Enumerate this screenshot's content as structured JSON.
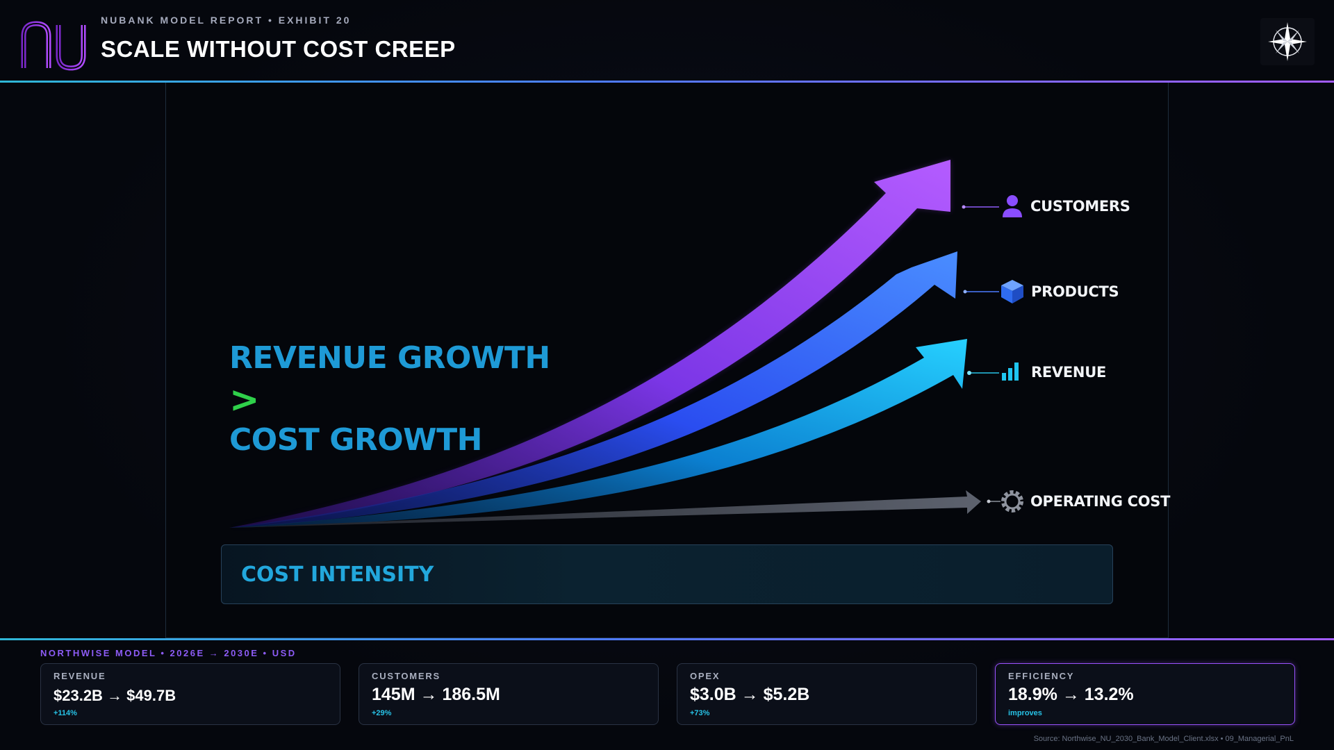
{
  "header": {
    "eyebrow": "NUBANK MODEL REPORT • EXHIBIT 20",
    "title": "SCALE WITHOUT COST CREEP",
    "logo_icon": "nu-logo-icon",
    "badge_icon": "compass-icon"
  },
  "colors": {
    "accent_purple": "#a35bff",
    "accent_blue": "#4d7bff",
    "accent_cyan": "#27c2e6",
    "accent_green": "#2fd04a"
  },
  "hero": {
    "line1": "REVENUE GROWTH",
    "comparator": ">",
    "line2": "COST GROWTH"
  },
  "series": [
    {
      "label": "CUSTOMERS",
      "icon": "user-icon",
      "color": "#a35bff"
    },
    {
      "label": "PRODUCTS",
      "icon": "cube-icon",
      "color": "#3d7dff"
    },
    {
      "label": "REVENUE",
      "icon": "bar-chart-icon",
      "color": "#1fc6f0"
    },
    {
      "label": "OPERATING COST",
      "icon": "gear-icon",
      "color": "#6d7280"
    }
  ],
  "cost_intensity": {
    "label": "COST INTENSITY"
  },
  "footer": {
    "model_tag": "NORTHWISE MODEL • 2026E → 2030E • USD",
    "kpis": [
      {
        "label": "REVENUE",
        "value": "$23.2B → $49.7B",
        "delta": "+114%"
      },
      {
        "label": "CUSTOMERS",
        "value": "145M → 186.5M",
        "delta": "+29%"
      },
      {
        "label": "OPEX",
        "value": "$3.0B → $5.2B",
        "delta": "+73%"
      },
      {
        "label": "EFFICIENCY",
        "value": "18.9% → 13.2%",
        "delta": "improves"
      }
    ],
    "source": "Source: Northwise_NU_2030_Bank_Model_Client.xlsx • 09_Managerial_PnL"
  }
}
